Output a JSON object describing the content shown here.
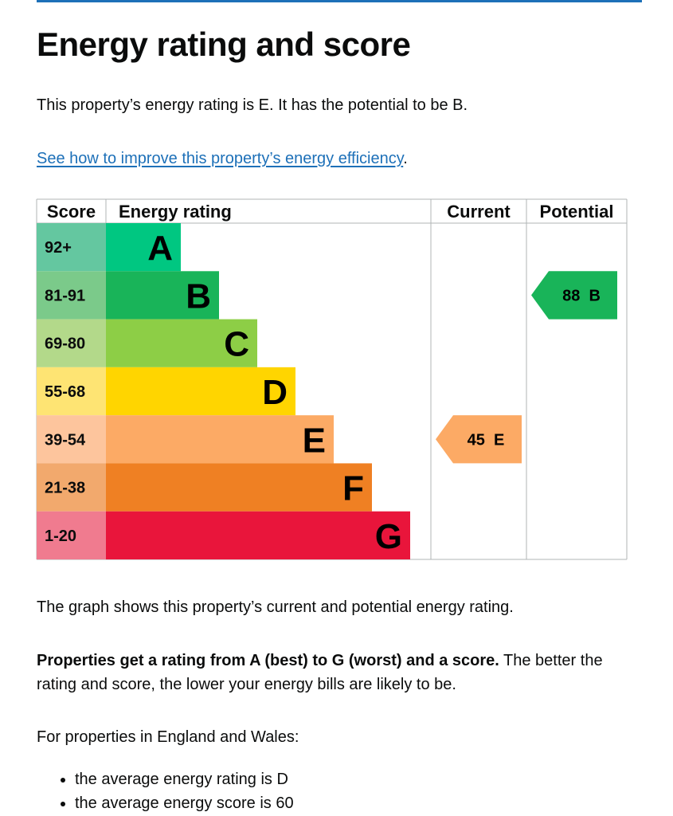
{
  "page": {
    "title": "Energy rating and score",
    "intro": "This property’s energy rating is E. It has the potential to be B.",
    "link_text": "See how to improve this property’s energy efficiency",
    "link_suffix": ".",
    "graph_note": "The graph shows this property’s current and potential energy rating.",
    "rating_note_bold": "Properties get a rating from A (best) to G (worst) and a score.",
    "rating_note_rest": " The better the rating and score, the lower your energy bills are likely to be.",
    "region_note": "For properties in England and Wales:",
    "bullets": [
      "the average energy rating is D",
      "the average energy score is 60"
    ]
  },
  "chart_data": {
    "type": "bar",
    "columns": [
      "Score",
      "Energy rating",
      "Current",
      "Potential"
    ],
    "bands": [
      {
        "letter": "A",
        "score_range": "92+",
        "color": "#00c781",
        "score_bg": "#64c7a0"
      },
      {
        "letter": "B",
        "score_range": "81-91",
        "color": "#19b459",
        "score_bg": "#7bca8a"
      },
      {
        "letter": "C",
        "score_range": "69-80",
        "color": "#8dce46",
        "score_bg": "#b3d98a"
      },
      {
        "letter": "D",
        "score_range": "55-68",
        "color": "#ffd500",
        "score_bg": "#fee473"
      },
      {
        "letter": "E",
        "score_range": "39-54",
        "color": "#fcaa65",
        "score_bg": "#fdc59d"
      },
      {
        "letter": "F",
        "score_range": "21-38",
        "color": "#ef8023",
        "score_bg": "#f2a96d"
      },
      {
        "letter": "G",
        "score_range": "1-20",
        "color": "#e9153b",
        "score_bg": "#f07b8f"
      }
    ],
    "current": {
      "score": 45,
      "rating": "E",
      "color": "#fcaa65"
    },
    "potential": {
      "score": 88,
      "rating": "B",
      "color": "#19b459"
    }
  }
}
